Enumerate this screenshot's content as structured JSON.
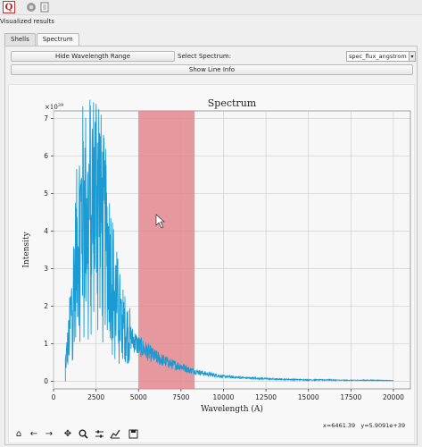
{
  "window": {
    "title": "Visualized results"
  },
  "toolbar": {
    "app_letter": "Q",
    "gear_icon": "gear-icon",
    "document_icon": "document-icon"
  },
  "tabs": [
    {
      "label": "Shells"
    },
    {
      "label": "Spectrum"
    }
  ],
  "controls": {
    "hide_range_label": "Hide Wavelength Range",
    "select_label": "Select Spectrum:",
    "select_value": "spec_flux_angstrom",
    "show_line_info_label": "Show Line Info"
  },
  "status": {
    "x_readout": "x=6461.39",
    "y_readout": "y=5.9091e+39"
  },
  "nav_toolbar": [
    {
      "name": "home-icon"
    },
    {
      "name": "back-icon"
    },
    {
      "name": "forward-icon"
    },
    {
      "name": "pan-icon"
    },
    {
      "name": "zoom-icon"
    },
    {
      "name": "configure-subplots-icon"
    },
    {
      "name": "edit-axes-icon"
    },
    {
      "name": "save-icon"
    }
  ],
  "chart_data": {
    "type": "line",
    "title": "Spectrum",
    "xlabel": "Wavelength (A)",
    "ylabel": "Intensity",
    "y_multiplier": "×10",
    "y_exponent": "39",
    "xlim": [
      0,
      21000
    ],
    "ylim": [
      -0.2,
      7.2
    ],
    "xticks": [
      0,
      2500,
      5000,
      7500,
      10000,
      12500,
      15000,
      17500,
      20000
    ],
    "yticks": [
      0,
      1,
      2,
      3,
      4,
      5,
      6,
      7
    ],
    "grid": true,
    "line_color": "#1a9bd4",
    "highlight": {
      "x_start": 5000,
      "x_end": 8300,
      "color": "#e07f86"
    },
    "series": [
      {
        "x": [
          700,
          900,
          1200,
          1500,
          1800,
          2000,
          2200,
          2400,
          2600,
          2800,
          3000,
          3200,
          3400,
          3600,
          3800,
          4000,
          4500,
          5000,
          5500,
          6000,
          6500,
          7000,
          7500,
          8000,
          9000,
          10000,
          11000,
          12000,
          13000,
          14000,
          15000,
          16000,
          17000,
          18000,
          19000,
          20000
        ],
        "values": [
          0.5,
          1.1,
          2.7,
          4.1,
          4.7,
          4.3,
          5.0,
          4.8,
          5.5,
          4.4,
          3.9,
          3.5,
          3.0,
          2.4,
          2.0,
          1.6,
          1.2,
          0.95,
          0.8,
          0.65,
          0.55,
          0.45,
          0.4,
          0.3,
          0.2,
          0.13,
          0.1,
          0.08,
          0.06,
          0.05,
          0.04,
          0.04,
          0.03,
          0.03,
          0.03,
          0.02
        ]
      }
    ]
  }
}
